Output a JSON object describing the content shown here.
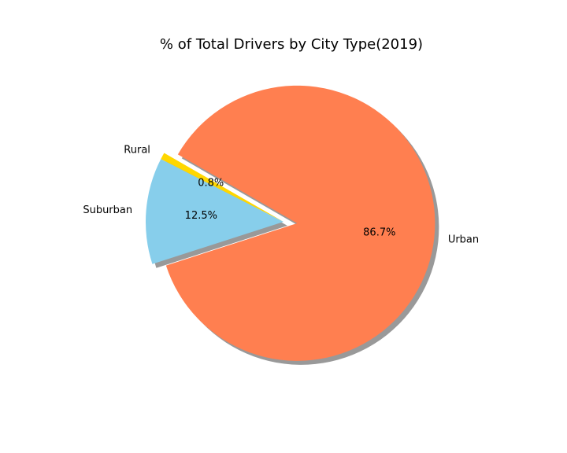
{
  "chart_data": {
    "type": "pie",
    "title": "% of Total Drivers by City Type(2019)",
    "categories": [
      "Rural",
      "Suburban",
      "Urban"
    ],
    "values": [
      0.8,
      12.5,
      86.7
    ],
    "pct_labels": [
      "0.8%",
      "12.5%",
      "86.7%"
    ],
    "colors": [
      "#ffd700",
      "#87ceeb",
      "#ff7f50"
    ],
    "explode": [
      0.0,
      0.0,
      0.1
    ],
    "shadow": true,
    "start_angle_deg": 150
  }
}
